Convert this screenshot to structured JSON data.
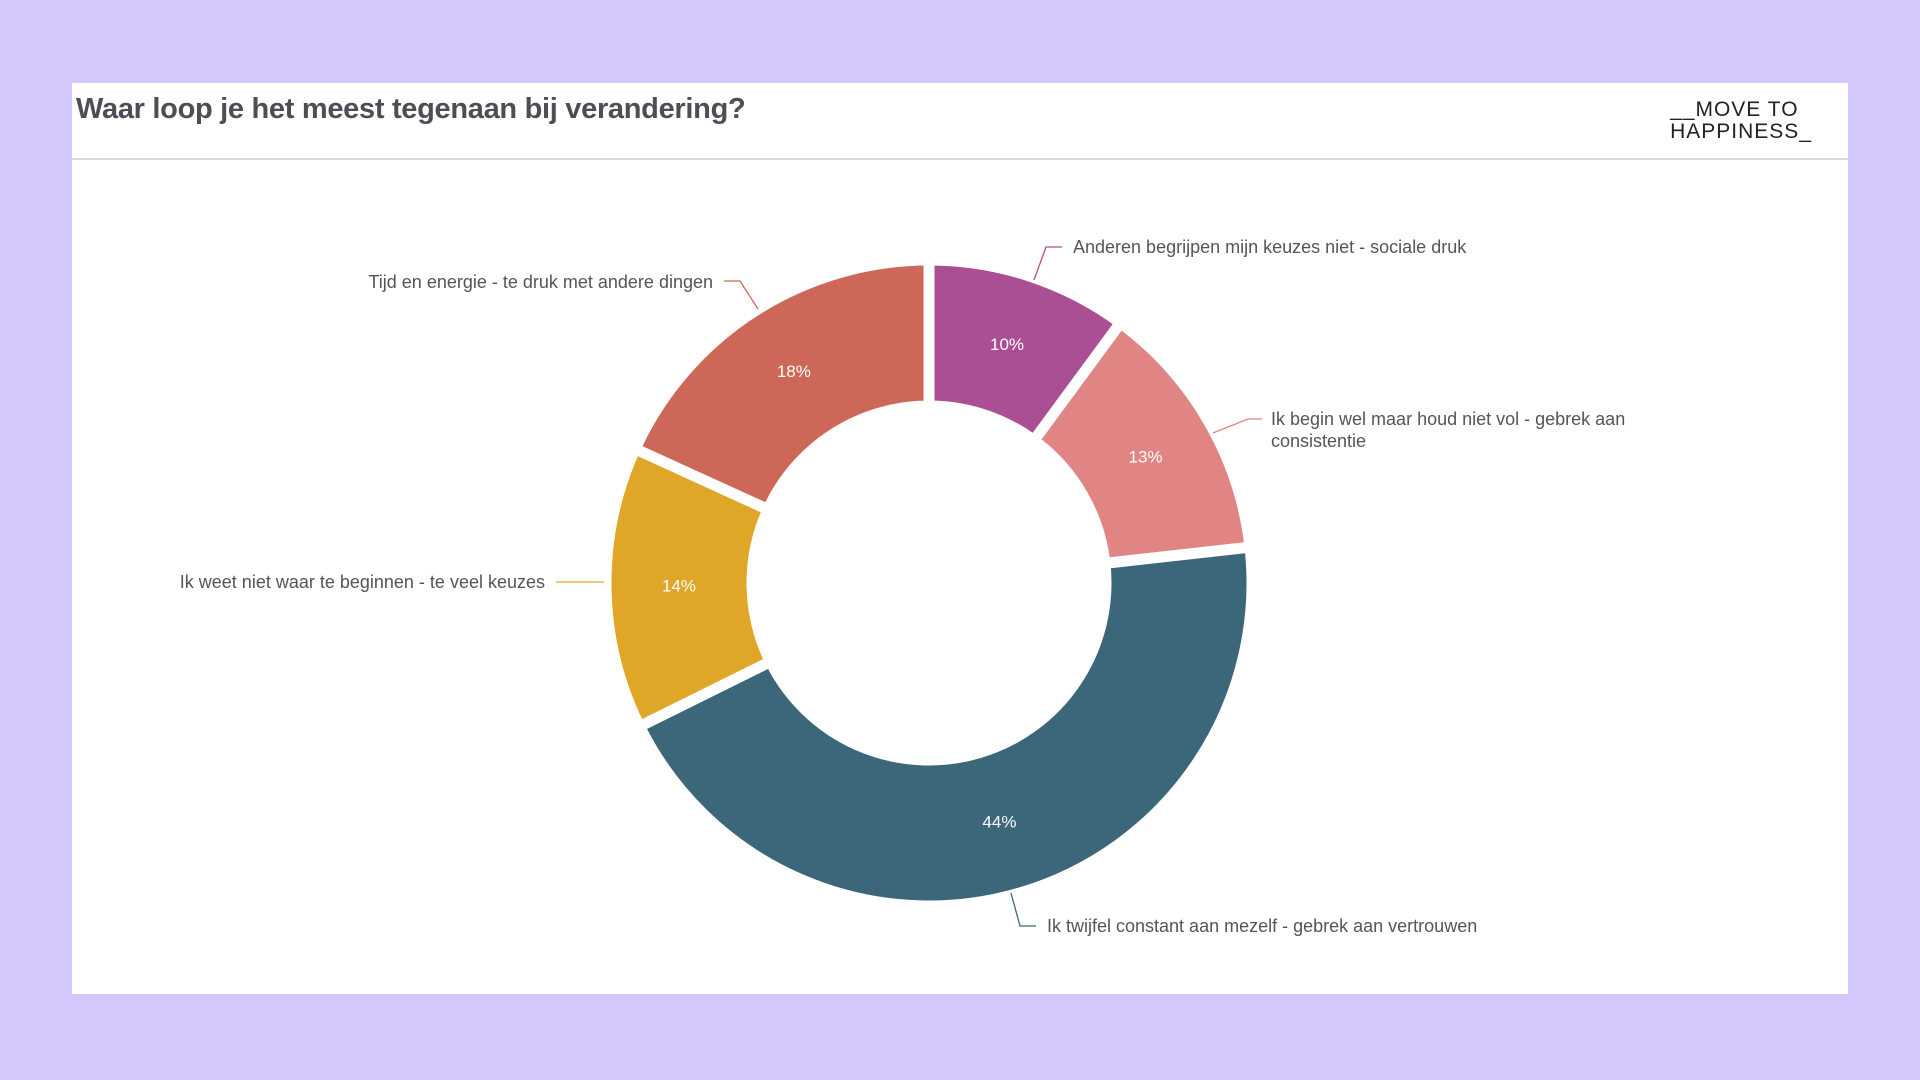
{
  "title": "Waar loop je het meest tegenaan bij verandering?",
  "logo": {
    "line1": "__MOVE TO",
    "line2": "HAPPINESS_"
  },
  "chart_data": {
    "type": "pie",
    "variant": "donut",
    "title": "Waar loop je het meest tegenaan bij verandering?",
    "slices": [
      {
        "label": "Anderen begrijpen mijn keuzes niet - sociale druk",
        "value": 10,
        "display": "10%",
        "color": "#ab4f95"
      },
      {
        "label": "Ik begin wel maar houd niet vol - gebrek aan consistentie",
        "label_lines": [
          "Ik begin wel maar houd niet vol - gebrek aan",
          "consistentie"
        ],
        "value": 13,
        "display": "13%",
        "color": "#e08583"
      },
      {
        "label": "Ik twijfel constant aan mezelf - gebrek aan vertrouwen",
        "value": 44,
        "display": "44%",
        "color": "#3c6679"
      },
      {
        "label": "Ik weet niet waar te beginnen - te veel keuzes",
        "value": 14,
        "display": "14%",
        "color": "#e0a627"
      },
      {
        "label": "Tijd en energie - te druk met andere dingen",
        "value": 18,
        "display": "18%",
        "color": "#cd6858"
      }
    ],
    "start": "top",
    "direction": "clockwise",
    "legend": "outside-labels"
  }
}
